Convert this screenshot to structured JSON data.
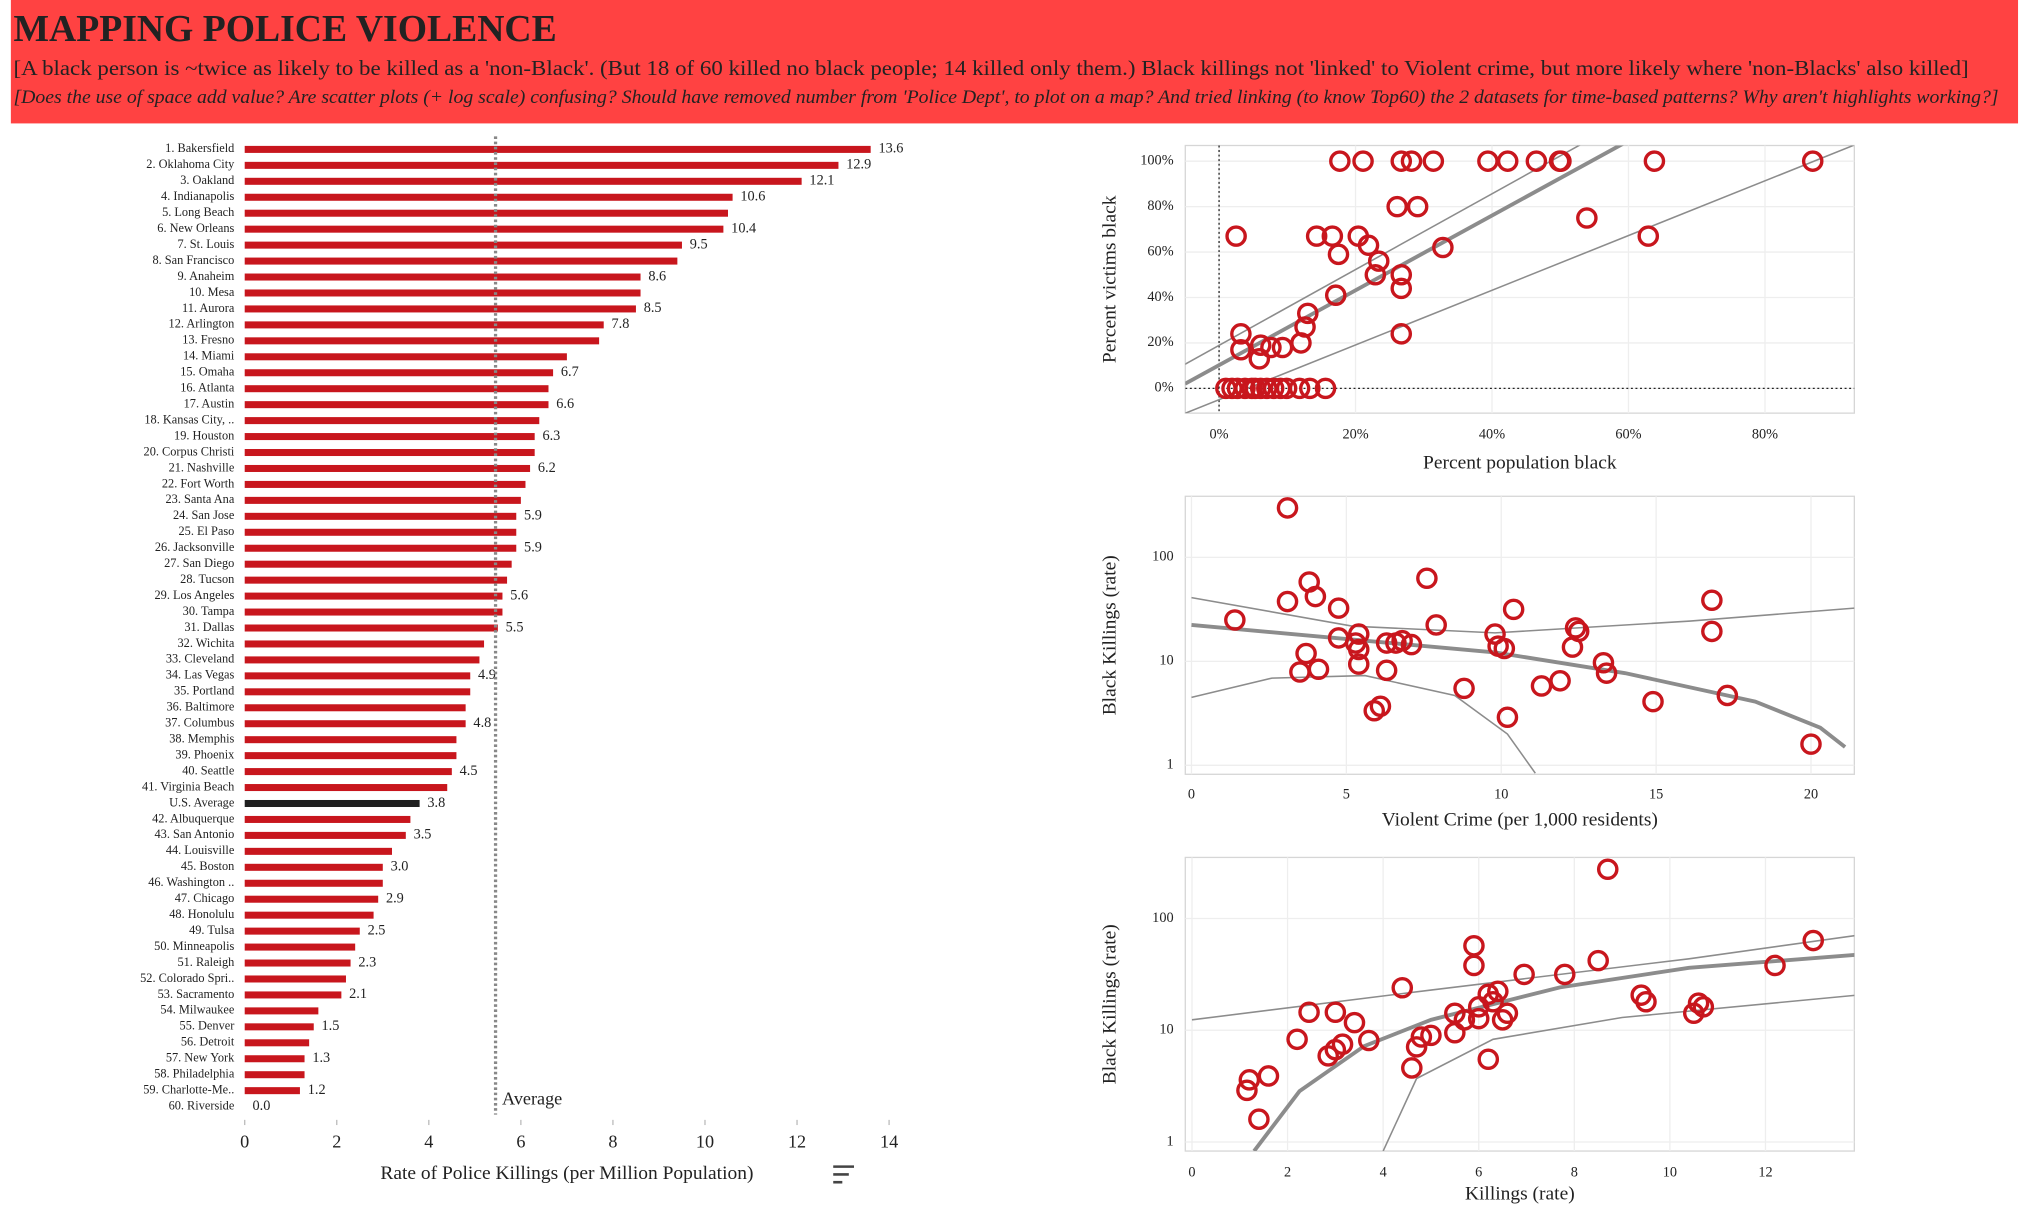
{
  "header": {
    "title": "MAPPING POLICE VIOLENCE",
    "subtitle": "[A black person is ~twice as likely to be killed as a 'non-Black'. (But 18 of 60 killed no black people; 14 killed only them.) Black killings not 'linked' to Violent crime, but more likely where 'non-Blacks' also killed]",
    "question": "[Does the use of space add value? Are scatter plots (+ log scale) confusing? Should have removed number from 'Police Dept', to plot on a map? And tried linking (to know Top60) the 2 datasets for time-based patterns? Why aren't highlights working?]"
  },
  "chart_data": [
    {
      "type": "bar",
      "orientation": "horizontal",
      "x_label": "Rate of Police Killings (per Million Population)",
      "categories": [
        "1. Bakersfield",
        "2. Oklahoma City",
        "3. Oakland",
        "4. Indianapolis",
        "5. Long Beach",
        "6. New Orleans",
        "7. St. Louis",
        "8. San Francisco",
        "9. Anaheim",
        "10. Mesa",
        "11. Aurora",
        "12. Arlington",
        "13. Fresno",
        "14. Miami",
        "15. Omaha",
        "16. Atlanta",
        "17. Austin",
        "18. Kansas City, ..",
        "19. Houston",
        "20. Corpus Christi",
        "21. Nashville",
        "22. Fort Worth",
        "23. Santa Ana",
        "24. San Jose",
        "25. El Paso",
        "26. Jacksonville",
        "27. San Diego",
        "28. Tucson",
        "29. Los Angeles",
        "30. Tampa",
        "31. Dallas",
        "32. Wichita",
        "33. Cleveland",
        "34. Las Vegas",
        "35. Portland",
        "36. Baltimore",
        "37. Columbus",
        "38. Memphis",
        "39. Phoenix",
        "40. Seattle",
        "41. Virginia Beach",
        "U.S. Average",
        "42. Albuquerque",
        "43. San Antonio",
        "44. Louisville",
        "45. Boston",
        "46. Washington ..",
        "47. Chicago",
        "48. Honolulu",
        "49. Tulsa",
        "50. Minneapolis",
        "51. Raleigh",
        "52. Colorado Spri..",
        "53. Sacramento",
        "54. Milwaukee",
        "55. Denver",
        "56. Detroit",
        "57. New York",
        "58. Philadelphia",
        "59. Charlotte-Me..",
        "60. Riverside"
      ],
      "values": [
        13.6,
        12.9,
        12.1,
        10.6,
        10.5,
        10.4,
        9.5,
        9.4,
        8.6,
        8.6,
        8.5,
        7.8,
        7.7,
        7.0,
        6.7,
        6.6,
        6.6,
        6.4,
        6.3,
        6.3,
        6.2,
        6.1,
        6.0,
        5.9,
        5.9,
        5.9,
        5.8,
        5.7,
        5.6,
        5.6,
        5.5,
        5.2,
        5.1,
        4.9,
        4.9,
        4.8,
        4.8,
        4.6,
        4.6,
        4.5,
        4.4,
        3.8,
        3.6,
        3.5,
        3.2,
        3.0,
        3.0,
        2.9,
        2.8,
        2.5,
        2.4,
        2.3,
        2.2,
        2.1,
        1.6,
        1.5,
        1.4,
        1.3,
        1.3,
        1.2,
        0
      ],
      "value_labels": [
        "13.6",
        "12.9",
        "12.1",
        "10.6",
        null,
        "10.4",
        "9.5",
        null,
        "8.6",
        null,
        "8.5",
        "7.8",
        null,
        null,
        "6.7",
        null,
        "6.6",
        null,
        "6.3",
        null,
        "6.2",
        null,
        null,
        "5.9",
        null,
        "5.9",
        null,
        null,
        "5.6",
        null,
        "5.5",
        null,
        null,
        "4.9",
        null,
        null,
        "4.8",
        null,
        null,
        "4.5",
        null,
        "3.8",
        null,
        "3.5",
        null,
        "3.0",
        null,
        "2.9",
        null,
        "2.5",
        null,
        "2.3",
        null,
        "2.1",
        null,
        "1.5",
        null,
        "1.3",
        null,
        "1.2",
        "0.0"
      ],
      "color": "#c8161d",
      "highlight": {
        "category": "U.S. Average",
        "color": "#1f1f1f"
      },
      "reference_line": {
        "value": 5.45,
        "label": "Average"
      },
      "xlim": [
        0,
        14
      ],
      "xticks": [
        0,
        2,
        4,
        6,
        8,
        10,
        12,
        14
      ],
      "grid": false
    },
    {
      "type": "scatter",
      "x_label": "Percent population black",
      "y_label": "Percent victims black",
      "x": [
        17.7,
        21.1,
        26.7,
        28.2,
        31.4,
        39.4,
        42.3,
        46.5,
        49.9,
        50.1,
        63.8,
        87,
        26.1,
        29.1,
        53.9,
        2.5,
        62.9,
        14.3,
        16.6,
        20.4,
        32.8,
        21.9,
        23.4,
        22.9,
        26.7,
        26.7,
        17.5,
        17.1,
        13,
        12.6,
        12,
        7.6,
        9.3,
        3.2,
        3.2,
        5.9,
        6.1,
        26.7,
        1,
        1.9,
        2.7,
        3.8,
        4.8,
        5.3,
        6.1,
        7,
        8,
        9,
        9.9,
        11.8,
        13.3,
        15.6
      ],
      "values": [
        100,
        100,
        100,
        100,
        100,
        100,
        100,
        100,
        100,
        100,
        100,
        100,
        80,
        80,
        75,
        67,
        67,
        67,
        67,
        67,
        62,
        63,
        56,
        50,
        50,
        44,
        59,
        41,
        33,
        27,
        20,
        18,
        18,
        24,
        17,
        13,
        19,
        24,
        0,
        0,
        0,
        0,
        0,
        0,
        0,
        0,
        0,
        0,
        0,
        0,
        0,
        0
      ],
      "color": "#c8161d",
      "fit_lines": [
        {
          "style": "thick",
          "x": [
            -5,
            60
          ],
          "values": [
            2,
            109
          ]
        },
        {
          "style": "thin",
          "x": [
            -5,
            54
          ],
          "values": [
            10.6,
            109
          ]
        },
        {
          "style": "thin",
          "x": [
            -5,
            93
          ],
          "values": [
            -11,
            107
          ]
        }
      ],
      "fit_color": "#8c8c8c",
      "zero_lines": {
        "x": 0,
        "y": 0
      },
      "xlim": [
        -4.95,
        93.1
      ],
      "ylim": [
        -10.9,
        106.9
      ],
      "xticks": [
        {
          "value": 0,
          "label": "0%"
        },
        {
          "value": 20,
          "label": "20%"
        },
        {
          "value": 40,
          "label": "40%"
        },
        {
          "value": 60,
          "label": "60%"
        },
        {
          "value": 80,
          "label": "80%"
        }
      ],
      "yticks": [
        {
          "value": 0,
          "label": "0%"
        },
        {
          "value": 20,
          "label": "20%"
        },
        {
          "value": 40,
          "label": "40%"
        },
        {
          "value": 60,
          "label": "60%"
        },
        {
          "value": 80,
          "label": "80%"
        },
        {
          "value": 100,
          "label": "100%"
        }
      ],
      "grid": true
    },
    {
      "type": "scatter",
      "x_label": "Violent Crime (per 1,000 residents)",
      "y_label": "Black Killings (rate)",
      "x": [
        3.1,
        1.4,
        3.1,
        3.8,
        4,
        4.75,
        3.7,
        3.5,
        4.1,
        4.75,
        5.4,
        5.4,
        5.4,
        5.3,
        6.3,
        6.6,
        6.8,
        7.1,
        6.3,
        5.9,
        6.1,
        7.6,
        7.9,
        8.8,
        9.8,
        9.9,
        10.1,
        10.4,
        10.2,
        11.3,
        11.9,
        12.4,
        12.5,
        12.3,
        13.3,
        13.4,
        14.9,
        16.8,
        16.8,
        17.3,
        20
      ],
      "values": [
        299,
        25,
        37.6,
        58,
        42,
        32.5,
        11.9,
        7.9,
        8.4,
        16.8,
        18.3,
        13,
        9.4,
        15,
        15,
        15,
        15.8,
        14.5,
        8.2,
        3.35,
        3.7,
        63,
        22.4,
        5.5,
        18.3,
        14,
        13.3,
        31.6,
        2.9,
        5.8,
        6.5,
        21,
        19.4,
        13.7,
        9.7,
        7.7,
        4.1,
        38.7,
        19.4,
        4.7,
        1.6
      ],
      "color": "#c8161d",
      "fit_lines": [
        {
          "style": "thick",
          "x": [
            0,
            5.6,
            9.8,
            14,
            18.2,
            20.3,
            21.1
          ],
          "values": [
            22.4,
            15.8,
            12.2,
            7.7,
            4.1,
            2.3,
            1.5
          ]
        },
        {
          "style": "thin",
          "x": [
            0,
            5.2,
            9.8,
            16.1,
            21.4
          ],
          "values": [
            41,
            21.8,
            18.8,
            24.4,
            32.5
          ]
        },
        {
          "style": "thin",
          "x": [
            0,
            2.6,
            5.6,
            8.5,
            10.2,
            11.1
          ],
          "values": [
            4.5,
            6.9,
            7.3,
            4.7,
            2.0,
            0.84
          ]
        }
      ],
      "fit_color": "#8c8c8c",
      "yscale": "log",
      "xlim": [
        -0.2,
        21.4
      ],
      "ylim": [
        0.82,
        387
      ],
      "xticks": [
        0,
        5,
        10,
        15,
        20
      ],
      "yticks": [
        1,
        10,
        100
      ],
      "grid": true
    },
    {
      "type": "scatter",
      "x_label": "Killings (rate)",
      "y_label": "Black Killings (rate)",
      "x": [
        8.7,
        13,
        12.2,
        5.9,
        5.9,
        8.5,
        7.8,
        6.95,
        4.4,
        6.4,
        6.3,
        6,
        5.5,
        5.7,
        6,
        6.6,
        6.2,
        6.5,
        5,
        4.8,
        4.7,
        5.5,
        4.6,
        6.2,
        9.4,
        9.5,
        10.5,
        10.6,
        10.7,
        2.45,
        3.0,
        3.4,
        3.7,
        3.15,
        2.85,
        3,
        2.2,
        1.2,
        1.15,
        1.6,
        1.4
      ],
      "values": [
        276,
        63.5,
        38,
        57,
        38,
        42,
        31.6,
        31.6,
        24,
        22.3,
        18,
        16.2,
        14.2,
        12.4,
        12.7,
        14.2,
        21,
        12.4,
        9,
        8.7,
        7.1,
        9.5,
        4.6,
        5.5,
        20.6,
        18,
        14.2,
        17.5,
        16.2,
        14.5,
        14.5,
        11.7,
        8.1,
        7.5,
        5.9,
        6.7,
        8.3,
        3.6,
        2.9,
        3.9,
        1.6
      ],
      "color": "#c8161d",
      "fit_lines": [
        {
          "style": "thick",
          "x": [
            1.3,
            2.25,
            3.6,
            5.0,
            7.7,
            10.4,
            13.9
          ],
          "values": [
            0.83,
            2.85,
            7.2,
            12.4,
            24.2,
            36.2,
            47.3
          ]
        },
        {
          "style": "thin",
          "x": [
            0,
            5,
            10.4,
            13.9
          ],
          "values": [
            12.4,
            22.9,
            43.6,
            70.6
          ]
        },
        {
          "style": "thin",
          "x": [
            4,
            4.7,
            6.3,
            9,
            13.9
          ],
          "values": [
            0.83,
            3.7,
            8.3,
            13,
            20.6
          ]
        }
      ],
      "fit_color": "#8c8c8c",
      "yscale": "log",
      "xlim": [
        -0.14,
        13.86
      ],
      "ylim": [
        0.83,
        352
      ],
      "xticks": [
        0,
        2,
        4,
        6,
        8,
        10,
        12
      ],
      "yticks": [
        1,
        10,
        100
      ],
      "grid": true
    }
  ]
}
